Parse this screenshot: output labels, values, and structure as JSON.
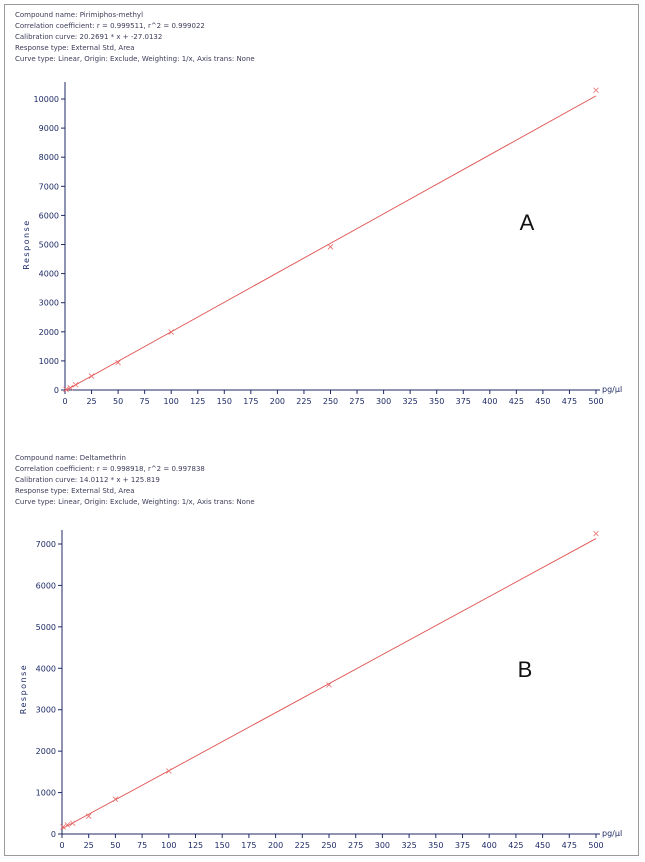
{
  "chart_data": [
    {
      "type": "scatter",
      "panel_label": "A",
      "info": {
        "compound": "Compound name: Pirimiphos-methyl",
        "correlation": "Correlation coefficient: r = 0.999511, r^2 = 0.999022",
        "calibration": "Calibration curve: 20.2691 * x + -27.0132",
        "response_type": "Response type: External Std, Area",
        "curve_type": "Curve type: Linear, Origin: Exclude, Weighting: 1/x, Axis trans: None"
      },
      "xlabel": "pg/µl",
      "ylabel": "Response",
      "xlim": [
        0,
        500
      ],
      "ylim": [
        0,
        10000
      ],
      "xticks": [
        0,
        25,
        50,
        75,
        100,
        125,
        150,
        175,
        200,
        225,
        250,
        275,
        300,
        325,
        350,
        375,
        400,
        425,
        450,
        475,
        500
      ],
      "yticks": [
        0,
        1000,
        2000,
        3000,
        4000,
        5000,
        6000,
        7000,
        8000,
        9000,
        10000
      ],
      "fit": {
        "slope": 20.2691,
        "intercept": -27.0132
      },
      "points": [
        {
          "x": 1,
          "y": 20
        },
        {
          "x": 5,
          "y": 75
        },
        {
          "x": 10,
          "y": 180
        },
        {
          "x": 25,
          "y": 480
        },
        {
          "x": 50,
          "y": 940
        },
        {
          "x": 100,
          "y": 1990
        },
        {
          "x": 250,
          "y": 4920
        },
        {
          "x": 500,
          "y": 10300
        }
      ],
      "colors": {
        "fit": "#e05050",
        "points": "#e86a6a",
        "axis": "#1e2a66"
      }
    },
    {
      "type": "scatter",
      "panel_label": "B",
      "info": {
        "compound": "Compound name: Deltamethrin",
        "correlation": "Correlation coefficient: r = 0.998918, r^2 = 0.997838",
        "calibration": "Calibration curve: 14.0112 * x + 125.819",
        "response_type": "Response type: External Std, Area",
        "curve_type": "Curve type: Linear, Origin: Exclude, Weighting: 1/x, Axis trans: None"
      },
      "xlabel": "pg/µl",
      "ylabel": "Response",
      "xlim": [
        0,
        500
      ],
      "ylim": [
        0,
        7000
      ],
      "xticks": [
        0,
        25,
        50,
        75,
        100,
        125,
        150,
        175,
        200,
        225,
        250,
        275,
        300,
        325,
        350,
        375,
        400,
        425,
        450,
        475,
        500
      ],
      "yticks": [
        0,
        1000,
        2000,
        3000,
        4000,
        5000,
        6000,
        7000
      ],
      "fit": {
        "slope": 14.0112,
        "intercept": 125.819
      },
      "points": [
        {
          "x": 1,
          "y": 170
        },
        {
          "x": 5,
          "y": 220
        },
        {
          "x": 10,
          "y": 260
        },
        {
          "x": 25,
          "y": 430
        },
        {
          "x": 50,
          "y": 840
        },
        {
          "x": 100,
          "y": 1520
        },
        {
          "x": 250,
          "y": 3600
        },
        {
          "x": 500,
          "y": 7250
        }
      ],
      "colors": {
        "fit": "#e05050",
        "points": "#e86a6a",
        "axis": "#1e2a66"
      }
    }
  ]
}
